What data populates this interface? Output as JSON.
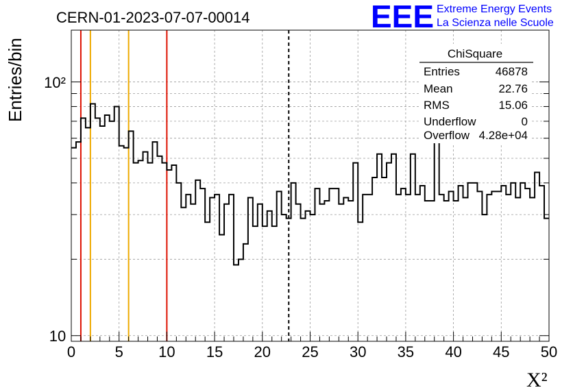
{
  "chart_data": {
    "type": "step-histogram",
    "title": "CERN-01-2023-07-07-00014",
    "xlabel": "X²",
    "ylabel": "Entries/bin",
    "xlim": [
      0,
      50
    ],
    "ylim": [
      9.5,
      160
    ],
    "ylog": true,
    "grid": true,
    "x_ticks": [
      "0",
      "5",
      "10",
      "15",
      "20",
      "25",
      "30",
      "35",
      "40",
      "45",
      "50"
    ],
    "y_tick_labels": [
      {
        "label": "10",
        "value": 10
      },
      {
        "label": "10²",
        "value": 100
      }
    ],
    "bin_width": 0.5,
    "values": [
      55,
      58,
      72,
      66,
      82,
      72,
      67,
      74,
      70,
      80,
      56,
      55,
      64,
      48,
      49,
      53,
      48,
      58,
      51,
      48,
      45,
      47,
      40,
      32,
      36,
      33,
      41,
      38,
      28,
      35,
      36,
      25,
      33,
      36,
      19,
      20,
      23,
      35,
      27,
      33,
      27,
      31,
      27,
      37,
      30,
      29,
      40,
      33,
      29,
      31,
      30,
      38,
      33,
      34,
      38,
      38,
      33,
      35,
      34,
      48,
      28,
      36,
      36,
      42,
      52,
      42,
      48,
      52,
      36,
      38,
      36,
      52,
      36,
      39,
      34,
      34,
      59,
      36,
      34,
      37,
      34,
      39,
      35,
      40,
      40,
      37,
      30,
      36,
      37,
      37,
      39,
      36,
      40,
      35,
      40,
      38,
      35,
      44,
      39,
      29
    ],
    "vertical_lines": [
      {
        "x": 1,
        "color": "#dd1100",
        "style": "solid"
      },
      {
        "x": 2,
        "color": "#eeaa00",
        "style": "solid"
      },
      {
        "x": 6,
        "color": "#eeaa00",
        "style": "solid"
      },
      {
        "x": 10,
        "color": "#dd1100",
        "style": "solid"
      },
      {
        "x": 22.76,
        "color": "#000000",
        "style": "dashed"
      }
    ],
    "stats_box": {
      "title": "ChiSquare",
      "rows": [
        {
          "label": "Entries",
          "value": "46878"
        },
        {
          "label": "Mean",
          "value": "22.76"
        },
        {
          "label": "RMS",
          "value": "15.06"
        },
        {
          "label": "Underflow",
          "value": "0"
        },
        {
          "label": "Overflow",
          "value": "4.28e+04"
        }
      ]
    }
  },
  "logo": {
    "mark": "EEE",
    "line1": "Extreme Energy Events",
    "line2": "La Scienza nelle Scuole",
    "color": "#0000ff"
  }
}
